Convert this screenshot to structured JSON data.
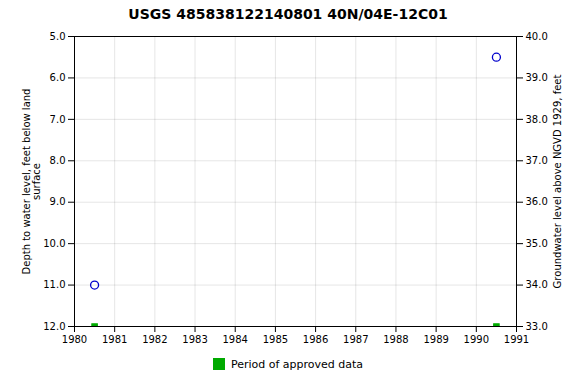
{
  "chart_data": {
    "type": "scatter",
    "title": "USGS 485838122140801 40N/04E-12C01",
    "ylabel": "Depth to water level, feet below land\nsurface",
    "y2label": "Groundwater level above NGVD 1929, feet",
    "x": [
      1980.5,
      1990.5
    ],
    "series": [
      {
        "values": [
          11.0,
          5.5
        ],
        "color": "#0000cc",
        "marker": "circle"
      },
      {
        "name": "Period of approved data",
        "values": [
          12.0,
          12.0
        ],
        "color": "#00aa00",
        "marker": "square"
      }
    ],
    "xlim": [
      1980,
      1991
    ],
    "xticks": [
      1980,
      1981,
      1982,
      1983,
      1984,
      1985,
      1986,
      1987,
      1988,
      1989,
      1990,
      1991
    ],
    "ylim": [
      12.0,
      5.0
    ],
    "yticks": [
      {
        "value": 5.0,
        "label": "5.0"
      },
      {
        "value": 6.0,
        "label": "6.0"
      },
      {
        "value": 7.0,
        "label": "7.0"
      },
      {
        "value": 8.0,
        "label": "8.0"
      },
      {
        "value": 9.0,
        "label": "9.0"
      },
      {
        "value": 10.0,
        "label": "10.0"
      },
      {
        "value": 11.0,
        "label": "11.0"
      },
      {
        "value": 12.0,
        "label": "12.0"
      }
    ],
    "y2lim": [
      33.0,
      40.0
    ],
    "y2ticks": [
      {
        "value": 40.0,
        "label": "40.0"
      },
      {
        "value": 39.0,
        "label": "39.0"
      },
      {
        "value": 38.0,
        "label": "38.0"
      },
      {
        "value": 37.0,
        "label": "37.0"
      },
      {
        "value": 36.0,
        "label": "36.0"
      },
      {
        "value": 35.0,
        "label": "35.0"
      },
      {
        "value": 34.0,
        "label": "34.0"
      },
      {
        "value": 33.0,
        "label": "33.0"
      }
    ],
    "grid": true,
    "legend": "bottom"
  }
}
